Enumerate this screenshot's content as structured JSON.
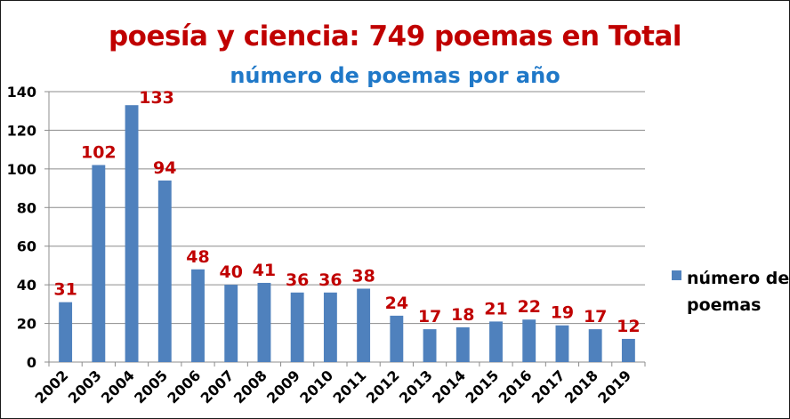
{
  "chart_data": {
    "type": "bar",
    "title": "poesía y ciencia: 749 poemas en Total",
    "subtitle": "número de poemas por año",
    "categories": [
      "2002",
      "2003",
      "2004",
      "2005",
      "2006",
      "2007",
      "2008",
      "2009",
      "2010",
      "2011",
      "2012",
      "2013",
      "2014",
      "2015",
      "2016",
      "2017",
      "2018",
      "2019"
    ],
    "series": [
      {
        "name": "número de poemas",
        "values": [
          31,
          102,
          133,
          94,
          48,
          40,
          41,
          36,
          36,
          38,
          24,
          17,
          18,
          21,
          22,
          19,
          17,
          12
        ]
      }
    ],
    "ylim": [
      0,
      140
    ],
    "yticks": [
      "0",
      "20",
      "40",
      "60",
      "80",
      "100",
      "120",
      "140"
    ],
    "grid": true,
    "legend_position": "right",
    "colors": {
      "bar": "#4f81bd",
      "data_label": "#c00000",
      "title": "#c00000",
      "subtitle": "#1f78c8"
    }
  }
}
